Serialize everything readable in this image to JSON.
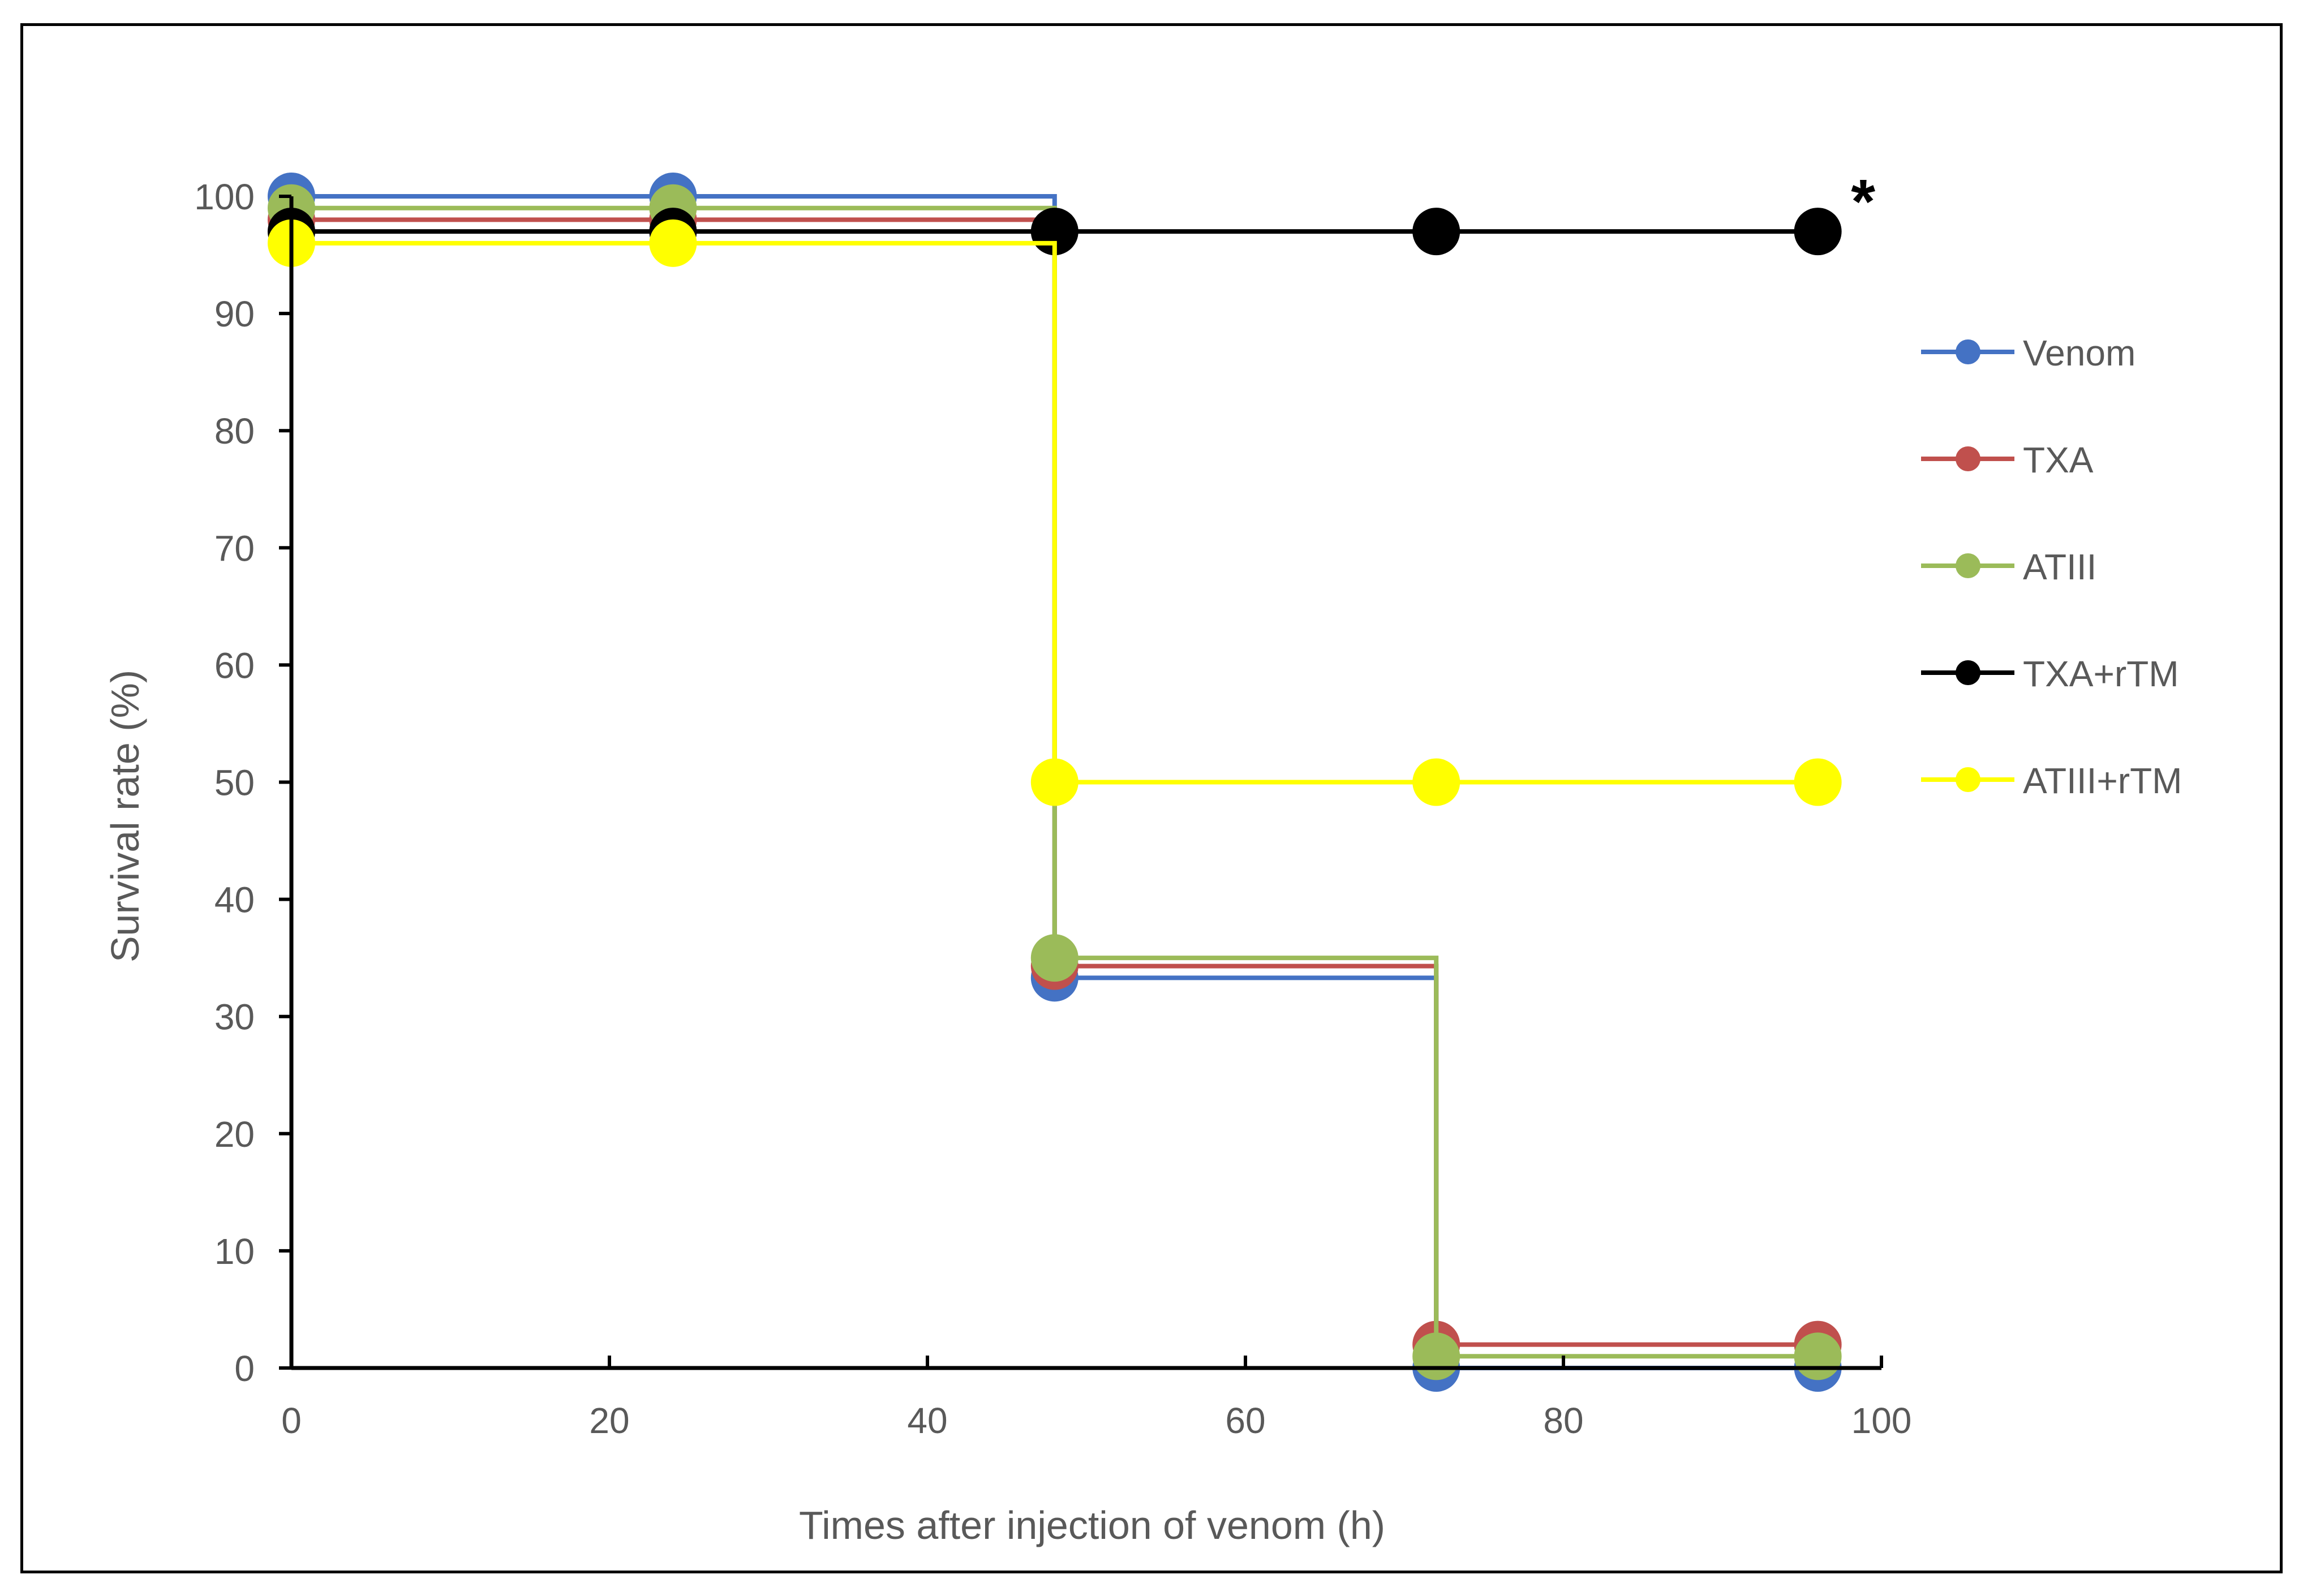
{
  "chart_data": {
    "type": "line",
    "xlabel": "Times after injection of venom (h)",
    "ylabel": "Survival rate (%)",
    "xlim": [
      0,
      100
    ],
    "ylim": [
      0,
      100
    ],
    "x_ticks": [
      "0",
      "20",
      "40",
      "60",
      "80",
      "100"
    ],
    "y_ticks": [
      "0",
      "10",
      "20",
      "30",
      "40",
      "50",
      "60",
      "70",
      "80",
      "90",
      "100"
    ],
    "x": [
      0,
      24,
      48,
      72,
      96
    ],
    "step": true,
    "grid": false,
    "legend_position": "right",
    "annotation": "*",
    "series": [
      {
        "name": "Venom",
        "color": "#4472C4",
        "values": [
          100,
          100,
          33.3,
          0,
          0
        ]
      },
      {
        "name": "TXA",
        "color": "#C0504D",
        "values": [
          98,
          98,
          34.3,
          2,
          2
        ]
      },
      {
        "name": "ATIII",
        "color": "#9BBB59",
        "values": [
          99,
          99,
          35,
          1,
          1
        ]
      },
      {
        "name": "TXA+rTM",
        "color": "#000000",
        "values": [
          97,
          97,
          97,
          97,
          97
        ]
      },
      {
        "name": "ATIII+rTM",
        "color": "#FFFF00",
        "values": [
          96,
          96,
          50,
          50,
          50
        ]
      }
    ]
  }
}
